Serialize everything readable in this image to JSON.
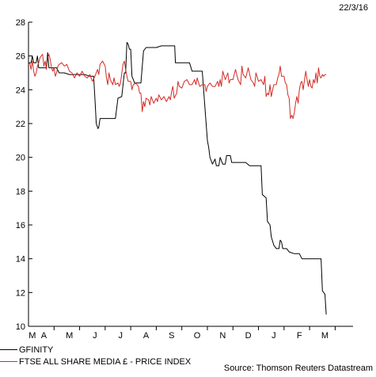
{
  "date_label": "22/3/16",
  "source": "Source: Thomson Reuters Datastream",
  "chart_data": {
    "type": "line",
    "ylim": [
      10,
      28
    ],
    "y_ticks": [
      10,
      12,
      14,
      16,
      18,
      20,
      22,
      24,
      26,
      28
    ],
    "xlim": [
      0,
      12.7
    ],
    "x_tick_labels": [
      {
        "label": "M",
        "x": 0.15
      },
      {
        "label": "A",
        "x": 0.6
      },
      {
        "label": "M",
        "x": 1.6
      },
      {
        "label": "J",
        "x": 2.6
      },
      {
        "label": "J",
        "x": 3.6
      },
      {
        "label": "A",
        "x": 4.6
      },
      {
        "label": "S",
        "x": 5.6
      },
      {
        "label": "O",
        "x": 6.6
      },
      {
        "label": "N",
        "x": 7.6
      },
      {
        "label": "D",
        "x": 8.6
      },
      {
        "label": "J",
        "x": 9.6
      },
      {
        "label": "F",
        "x": 10.6
      },
      {
        "label": "M",
        "x": 11.6
      }
    ],
    "series": [
      {
        "name": "GFINITY",
        "color": "#000000",
        "points": [
          [
            0.0,
            25.6
          ],
          [
            0.1,
            25.6
          ],
          [
            0.15,
            26.0
          ],
          [
            0.2,
            25.6
          ],
          [
            0.3,
            25.6
          ],
          [
            0.35,
            26.0
          ],
          [
            0.4,
            25.3
          ],
          [
            0.5,
            25.3
          ],
          [
            0.6,
            25.3
          ],
          [
            0.7,
            25.3
          ],
          [
            0.75,
            26.2
          ],
          [
            0.8,
            25.3
          ],
          [
            0.9,
            25.3
          ],
          [
            1.0,
            25.3
          ],
          [
            1.1,
            25.3
          ],
          [
            1.2,
            25.0
          ],
          [
            1.4,
            25.0
          ],
          [
            1.6,
            24.9
          ],
          [
            1.8,
            24.9
          ],
          [
            2.0,
            24.9
          ],
          [
            2.2,
            24.9
          ],
          [
            2.4,
            24.8
          ],
          [
            2.55,
            24.8
          ],
          [
            2.6,
            23.5
          ],
          [
            2.65,
            22.0
          ],
          [
            2.72,
            21.7
          ],
          [
            2.75,
            21.8
          ],
          [
            2.8,
            22.3
          ],
          [
            3.0,
            22.3
          ],
          [
            3.2,
            22.3
          ],
          [
            3.4,
            22.3
          ],
          [
            3.5,
            23.5
          ],
          [
            3.65,
            23.6
          ],
          [
            3.75,
            25.0
          ],
          [
            3.8,
            25.0
          ],
          [
            3.85,
            26.8
          ],
          [
            3.9,
            26.7
          ],
          [
            3.95,
            26.4
          ],
          [
            4.0,
            26.4
          ],
          [
            4.05,
            24.8
          ],
          [
            4.1,
            24.6
          ],
          [
            4.15,
            24.4
          ],
          [
            4.2,
            24.4
          ],
          [
            4.4,
            24.4
          ],
          [
            4.5,
            26.3
          ],
          [
            4.6,
            26.5
          ],
          [
            4.8,
            26.5
          ],
          [
            5.0,
            26.5
          ],
          [
            5.2,
            26.6
          ],
          [
            5.4,
            26.6
          ],
          [
            5.6,
            26.6
          ],
          [
            5.72,
            26.6
          ],
          [
            5.75,
            25.6
          ],
          [
            6.0,
            25.6
          ],
          [
            6.3,
            25.6
          ],
          [
            6.4,
            25.1
          ],
          [
            6.6,
            25.1
          ],
          [
            6.8,
            25.1
          ],
          [
            6.9,
            23.0
          ],
          [
            7.0,
            21.0
          ],
          [
            7.05,
            20.6
          ],
          [
            7.1,
            20.0
          ],
          [
            7.2,
            19.6
          ],
          [
            7.3,
            19.9
          ],
          [
            7.35,
            19.5
          ],
          [
            7.45,
            19.5
          ],
          [
            7.5,
            20.0
          ],
          [
            7.6,
            19.6
          ],
          [
            7.7,
            19.6
          ],
          [
            7.75,
            20.1
          ],
          [
            7.8,
            20.1
          ],
          [
            7.9,
            20.1
          ],
          [
            7.95,
            19.7
          ],
          [
            8.1,
            19.7
          ],
          [
            8.3,
            19.7
          ],
          [
            8.5,
            19.7
          ],
          [
            8.65,
            19.5
          ],
          [
            8.8,
            19.5
          ],
          [
            9.0,
            19.5
          ],
          [
            9.1,
            19.5
          ],
          [
            9.15,
            17.8
          ],
          [
            9.3,
            17.6
          ],
          [
            9.35,
            16.2
          ],
          [
            9.45,
            16.0
          ],
          [
            9.5,
            15.3
          ],
          [
            9.6,
            14.8
          ],
          [
            9.7,
            14.6
          ],
          [
            9.8,
            14.6
          ],
          [
            9.85,
            15.1
          ],
          [
            9.9,
            15.0
          ],
          [
            9.95,
            14.6
          ],
          [
            10.1,
            14.6
          ],
          [
            10.2,
            14.4
          ],
          [
            10.4,
            14.3
          ],
          [
            10.6,
            14.3
          ],
          [
            10.7,
            14.0
          ],
          [
            10.9,
            14.0
          ],
          [
            11.1,
            14.0
          ],
          [
            11.3,
            14.0
          ],
          [
            11.45,
            14.0
          ],
          [
            11.5,
            12.1
          ],
          [
            11.55,
            12.0
          ],
          [
            11.6,
            11.9
          ],
          [
            11.65,
            10.7
          ]
        ]
      },
      {
        "name": "FTSE ALL SHARE MEDIA £ - PRICE INDEX",
        "color": "#d42a25",
        "points": [
          [
            0.0,
            25.5
          ],
          [
            0.05,
            25.6
          ],
          [
            0.1,
            25.2
          ],
          [
            0.15,
            25.7
          ],
          [
            0.2,
            25.1
          ],
          [
            0.25,
            24.8
          ],
          [
            0.3,
            25.0
          ],
          [
            0.35,
            25.4
          ],
          [
            0.4,
            25.6
          ],
          [
            0.45,
            25.9
          ],
          [
            0.5,
            26.0
          ],
          [
            0.55,
            26.1
          ],
          [
            0.6,
            25.4
          ],
          [
            0.65,
            25.7
          ],
          [
            0.7,
            25.2
          ],
          [
            0.75,
            25.9
          ],
          [
            0.8,
            26.1
          ],
          [
            0.85,
            25.8
          ],
          [
            0.9,
            25.3
          ],
          [
            0.95,
            25.1
          ],
          [
            1.0,
            25.3
          ],
          [
            1.05,
            24.8
          ],
          [
            1.1,
            25.0
          ],
          [
            1.15,
            25.4
          ],
          [
            1.2,
            25.5
          ],
          [
            1.3,
            25.6
          ],
          [
            1.4,
            25.4
          ],
          [
            1.5,
            25.5
          ],
          [
            1.6,
            25.1
          ],
          [
            1.7,
            25.0
          ],
          [
            1.8,
            24.7
          ],
          [
            1.9,
            25.0
          ],
          [
            2.0,
            24.8
          ],
          [
            2.1,
            25.1
          ],
          [
            2.2,
            24.8
          ],
          [
            2.3,
            24.7
          ],
          [
            2.4,
            24.9
          ],
          [
            2.5,
            24.5
          ],
          [
            2.6,
            24.8
          ],
          [
            2.7,
            25.2
          ],
          [
            2.75,
            24.9
          ],
          [
            2.8,
            25.5
          ],
          [
            2.9,
            25.7
          ],
          [
            3.0,
            25.4
          ],
          [
            3.05,
            24.7
          ],
          [
            3.1,
            24.3
          ],
          [
            3.15,
            25.0
          ],
          [
            3.2,
            24.6
          ],
          [
            3.3,
            24.3
          ],
          [
            3.35,
            24.7
          ],
          [
            3.4,
            24.3
          ],
          [
            3.5,
            24.4
          ],
          [
            3.55,
            24.2
          ],
          [
            3.6,
            24.4
          ],
          [
            3.7,
            25.5
          ],
          [
            3.75,
            25.7
          ],
          [
            3.8,
            25.2
          ],
          [
            3.85,
            24.8
          ],
          [
            3.9,
            24.5
          ],
          [
            4.0,
            24.5
          ],
          [
            4.05,
            24.0
          ],
          [
            4.1,
            24.3
          ],
          [
            4.2,
            24.4
          ],
          [
            4.3,
            24.2
          ],
          [
            4.35,
            23.8
          ],
          [
            4.4,
            23.8
          ],
          [
            4.45,
            22.7
          ],
          [
            4.5,
            23.3
          ],
          [
            4.55,
            23.0
          ],
          [
            4.6,
            23.5
          ],
          [
            4.7,
            23.4
          ],
          [
            4.75,
            23.1
          ],
          [
            4.8,
            23.6
          ],
          [
            4.9,
            23.2
          ],
          [
            5.0,
            23.5
          ],
          [
            5.05,
            23.3
          ],
          [
            5.1,
            23.7
          ],
          [
            5.2,
            23.4
          ],
          [
            5.3,
            23.6
          ],
          [
            5.4,
            23.3
          ],
          [
            5.5,
            23.6
          ],
          [
            5.55,
            23.4
          ],
          [
            5.6,
            23.9
          ],
          [
            5.65,
            24.2
          ],
          [
            5.7,
            23.5
          ],
          [
            5.8,
            23.8
          ],
          [
            5.85,
            24.5
          ],
          [
            5.9,
            24.2
          ],
          [
            6.0,
            24.1
          ],
          [
            6.1,
            24.5
          ],
          [
            6.2,
            24.6
          ],
          [
            6.3,
            24.3
          ],
          [
            6.4,
            24.3
          ],
          [
            6.5,
            24.6
          ],
          [
            6.55,
            24.3
          ],
          [
            6.6,
            24.7
          ],
          [
            6.7,
            24.2
          ],
          [
            6.8,
            24.3
          ],
          [
            6.9,
            24.3
          ],
          [
            6.95,
            23.9
          ],
          [
            7.0,
            24.2
          ],
          [
            7.1,
            24.4
          ],
          [
            7.2,
            24.2
          ],
          [
            7.3,
            24.2
          ],
          [
            7.4,
            24.5
          ],
          [
            7.45,
            24.2
          ],
          [
            7.5,
            24.6
          ],
          [
            7.55,
            24.2
          ],
          [
            7.6,
            25.1
          ],
          [
            7.7,
            24.6
          ],
          [
            7.8,
            25.0
          ],
          [
            7.85,
            24.4
          ],
          [
            7.9,
            24.6
          ],
          [
            8.0,
            24.6
          ],
          [
            8.1,
            25.2
          ],
          [
            8.2,
            24.6
          ],
          [
            8.3,
            24.3
          ],
          [
            8.35,
            25.4
          ],
          [
            8.4,
            24.9
          ],
          [
            8.5,
            24.7
          ],
          [
            8.55,
            25.0
          ],
          [
            8.6,
            25.3
          ],
          [
            8.7,
            24.6
          ],
          [
            8.8,
            24.4
          ],
          [
            8.85,
            24.2
          ],
          [
            8.9,
            25.0
          ],
          [
            9.0,
            24.5
          ],
          [
            9.1,
            24.6
          ],
          [
            9.2,
            24.3
          ],
          [
            9.25,
            24.8
          ],
          [
            9.3,
            23.6
          ],
          [
            9.35,
            23.8
          ],
          [
            9.4,
            23.7
          ],
          [
            9.45,
            24.3
          ],
          [
            9.5,
            23.6
          ],
          [
            9.6,
            24.3
          ],
          [
            9.7,
            24.3
          ],
          [
            9.75,
            24.7
          ],
          [
            9.8,
            24.9
          ],
          [
            9.85,
            25.4
          ],
          [
            9.9,
            24.8
          ],
          [
            10.0,
            24.8
          ],
          [
            10.05,
            24.4
          ],
          [
            10.1,
            24.3
          ],
          [
            10.15,
            23.7
          ],
          [
            10.2,
            23.5
          ],
          [
            10.25,
            22.3
          ],
          [
            10.3,
            22.5
          ],
          [
            10.35,
            22.3
          ],
          [
            10.4,
            22.6
          ],
          [
            10.45,
            23.2
          ],
          [
            10.5,
            23.6
          ],
          [
            10.55,
            23.2
          ],
          [
            10.6,
            24.0
          ],
          [
            10.65,
            24.4
          ],
          [
            10.7,
            24.5
          ],
          [
            10.75,
            24.0
          ],
          [
            10.8,
            24.6
          ],
          [
            10.85,
            25.1
          ],
          [
            10.9,
            24.6
          ],
          [
            10.95,
            24.2
          ],
          [
            11.0,
            24.6
          ],
          [
            11.05,
            24.2
          ],
          [
            11.1,
            24.1
          ],
          [
            11.15,
            24.6
          ],
          [
            11.2,
            24.4
          ],
          [
            11.25,
            25.0
          ],
          [
            11.3,
            24.4
          ],
          [
            11.35,
            25.3
          ],
          [
            11.4,
            24.8
          ],
          [
            11.45,
            24.7
          ],
          [
            11.5,
            24.9
          ],
          [
            11.55,
            24.8
          ],
          [
            11.6,
            24.9
          ],
          [
            11.65,
            24.9
          ]
        ]
      }
    ]
  }
}
